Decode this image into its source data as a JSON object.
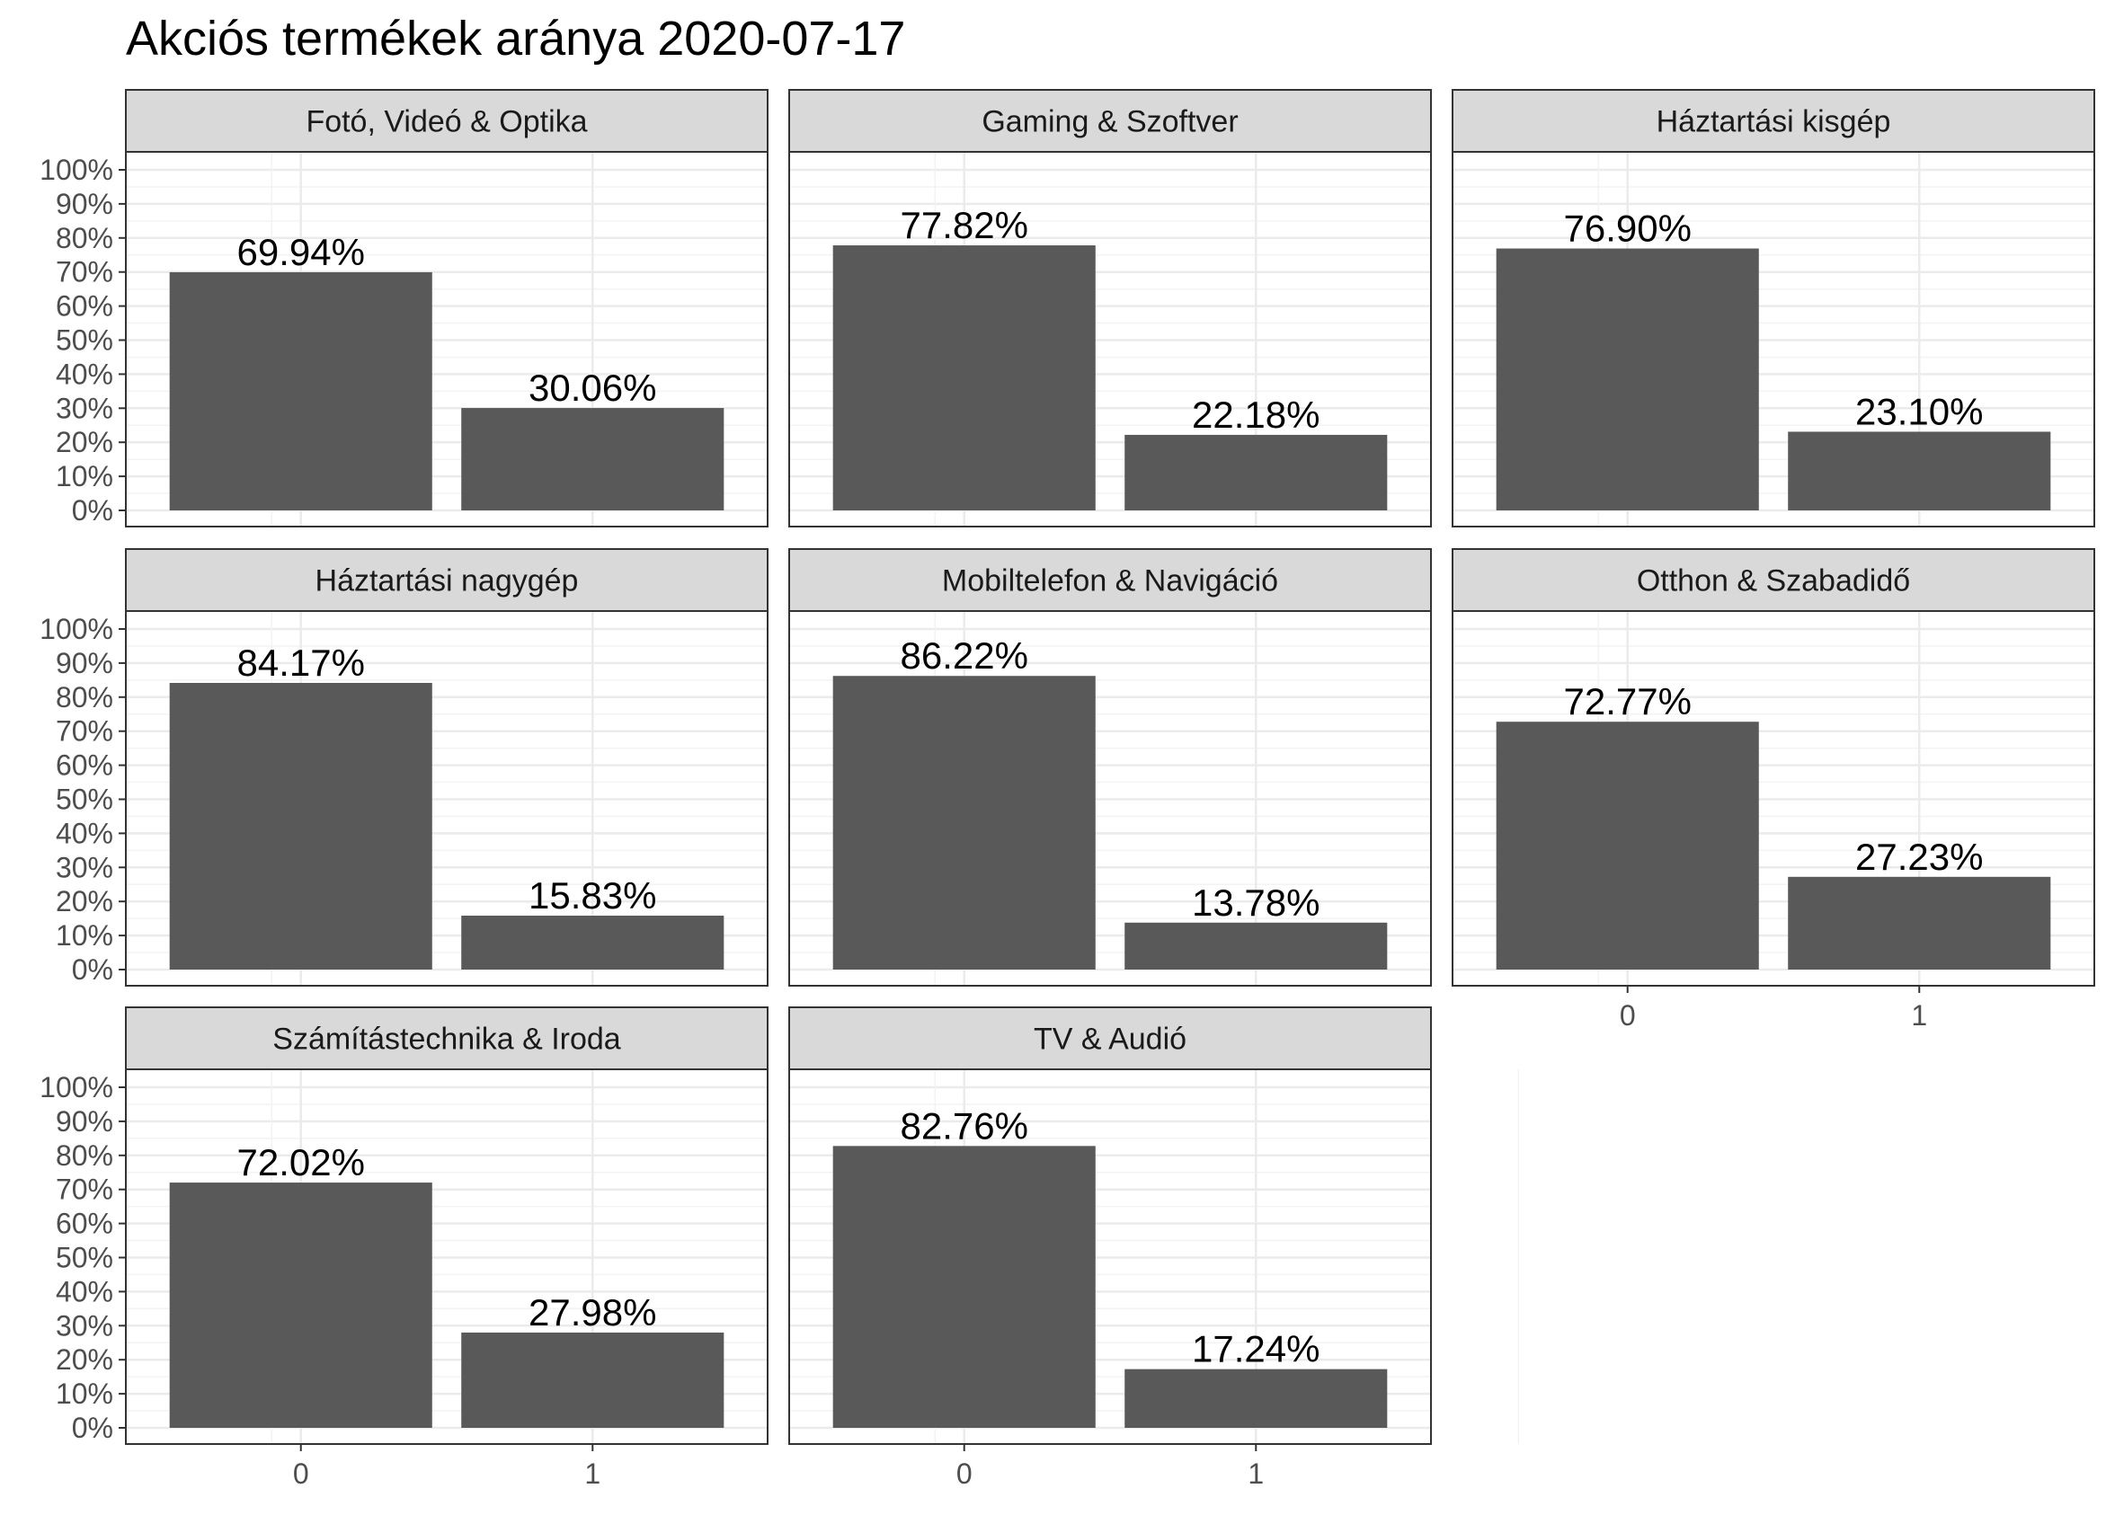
{
  "chart_data": {
    "type": "bar",
    "title": "Akciós termékek aránya 2020-07-17",
    "xlabel": "",
    "ylabel": "",
    "ylim": [
      0,
      100
    ],
    "y_ticks": [
      "0%",
      "10%",
      "20%",
      "30%",
      "40%",
      "50%",
      "60%",
      "70%",
      "80%",
      "90%",
      "100%"
    ],
    "categories": [
      "0",
      "1"
    ],
    "grid": true,
    "colors": {
      "bar": "#595959",
      "strip": "#d9d9d9",
      "grid": "#ebebeb",
      "border": "#333333"
    },
    "panels": [
      {
        "name": "Fotó, Videó & Optika",
        "values": [
          69.94,
          30.06
        ],
        "labels": [
          "69.94%",
          "30.06%"
        ]
      },
      {
        "name": "Gaming & Szoftver",
        "values": [
          77.82,
          22.18
        ],
        "labels": [
          "77.82%",
          "22.18%"
        ]
      },
      {
        "name": "Háztartási kisgép",
        "values": [
          76.9,
          23.1
        ],
        "labels": [
          "76.90%",
          "23.10%"
        ]
      },
      {
        "name": "Háztartási nagygép",
        "values": [
          84.17,
          15.83
        ],
        "labels": [
          "84.17%",
          "15.83%"
        ]
      },
      {
        "name": "Mobiltelefon & Navigáció",
        "values": [
          86.22,
          13.78
        ],
        "labels": [
          "86.22%",
          "13.78%"
        ]
      },
      {
        "name": "Otthon & Szabadidő",
        "values": [
          72.77,
          27.23
        ],
        "labels": [
          "72.77%",
          "27.23%"
        ]
      },
      {
        "name": "Számítástechnika & Iroda",
        "values": [
          72.02,
          27.98
        ],
        "labels": [
          "72.02%",
          "27.98%"
        ]
      },
      {
        "name": "TV & Audió",
        "values": [
          82.76,
          17.24
        ],
        "labels": [
          "82.76%",
          "17.24%"
        ]
      }
    ]
  }
}
